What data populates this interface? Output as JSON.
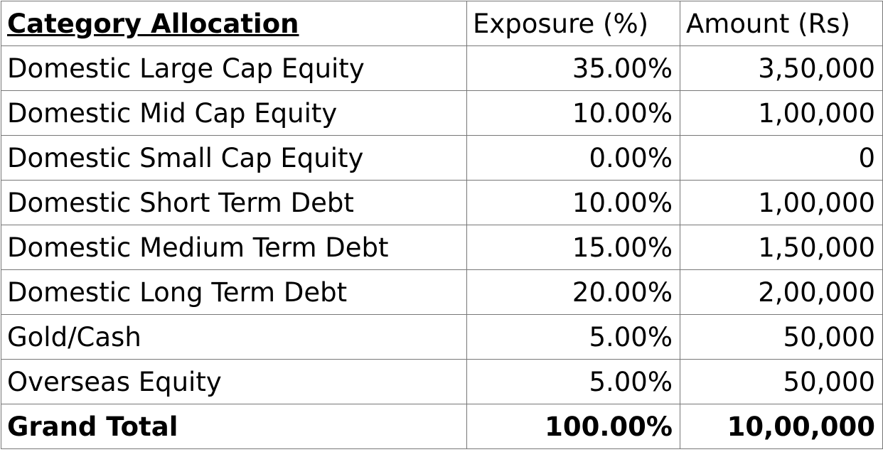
{
  "table": {
    "headers": {
      "category": "Category Allocation",
      "exposure": "Exposure (%)",
      "amount": "Amount (Rs)"
    },
    "rows": [
      {
        "category": "Domestic Large Cap Equity",
        "exposure": "35.00%",
        "amount": "3,50,000"
      },
      {
        "category": "Domestic Mid Cap Equity",
        "exposure": "10.00%",
        "amount": "1,00,000"
      },
      {
        "category": "Domestic Small Cap Equity",
        "exposure": "0.00%",
        "amount": "0"
      },
      {
        "category": "Domestic Short Term Debt",
        "exposure": "10.00%",
        "amount": "1,00,000"
      },
      {
        "category": "Domestic Medium Term Debt",
        "exposure": "15.00%",
        "amount": "1,50,000"
      },
      {
        "category": "Domestic Long Term Debt",
        "exposure": "20.00%",
        "amount": "2,00,000"
      },
      {
        "category": "Gold/Cash",
        "exposure": "5.00%",
        "amount": "50,000"
      },
      {
        "category": "Overseas Equity",
        "exposure": "5.00%",
        "amount": "50,000"
      }
    ],
    "total": {
      "category": "Grand Total",
      "exposure": "100.00%",
      "amount": "10,00,000"
    }
  }
}
